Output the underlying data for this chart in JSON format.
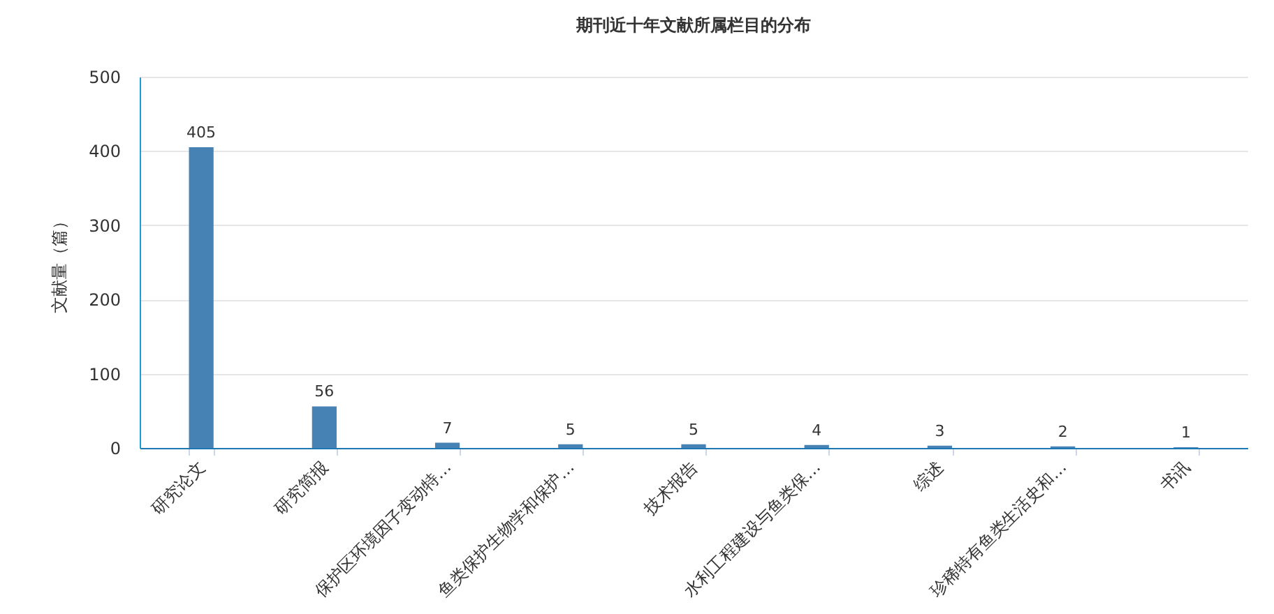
{
  "chart_data": {
    "type": "bar",
    "title": "期刊近十年文献所属栏目的分布",
    "ylabel": "文献量（篇）",
    "categories": [
      "研究论文",
      "研究简报",
      "保护区环境因子变动特…",
      "鱼类保护生物学和保护…",
      "技术报告",
      "水利工程建设与鱼类保…",
      "综述",
      "珍稀特有鱼类生活史和…",
      "书讯"
    ],
    "values": [
      405,
      56,
      7,
      5,
      5,
      4,
      3,
      2,
      1
    ],
    "color": "#4682b4",
    "ylim": [
      0,
      500
    ],
    "yticks": [
      0,
      100,
      200,
      300,
      400,
      500
    ],
    "grid": "y",
    "data_labels": true
  }
}
